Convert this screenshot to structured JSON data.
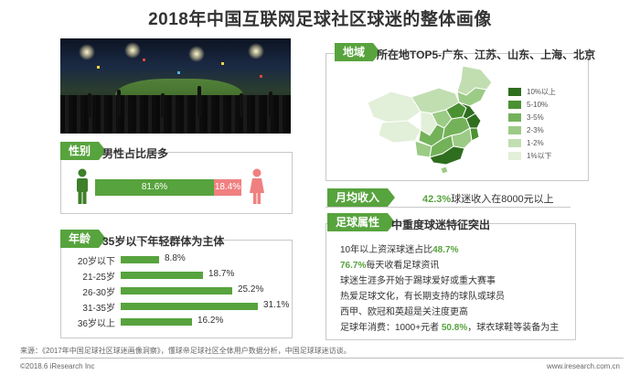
{
  "title": "2018年中国互联网足球社区球迷的整体画像",
  "region": {
    "tag": "地域",
    "headline": "所在地TOP5-广东、江苏、山东、上海、北京",
    "legend": [
      {
        "label": "10%以上",
        "color": "#2f6e1e"
      },
      {
        "label": "5-10%",
        "color": "#4b9132"
      },
      {
        "label": "3-5%",
        "color": "#74b25a"
      },
      {
        "label": "2-3%",
        "color": "#9ccb86"
      },
      {
        "label": "1-2%",
        "color": "#c1deb1"
      },
      {
        "label": "1%以下",
        "color": "#e2efd9"
      }
    ]
  },
  "gender": {
    "tag": "性别",
    "headline": "男性占比居多",
    "male_pct": "81.6%",
    "female_pct": "18.4%"
  },
  "income": {
    "tag": "月均收入",
    "value": "42.3%",
    "text": "球迷收入在8000元以上"
  },
  "traits": {
    "tag": "足球属性",
    "headline": "中重度球迷特征突出",
    "lines": [
      {
        "pre": "10年以上资深球迷占比",
        "hl": "48.7%",
        "post": ""
      },
      {
        "pre": "",
        "hl": "76.7%",
        "post": "每天收看足球资讯"
      },
      {
        "pre": "球迷生涯多开始于踢球爱好或重大赛事",
        "hl": "",
        "post": ""
      },
      {
        "pre": "热爱足球文化，有长期支持的球队或球员",
        "hl": "",
        "post": ""
      },
      {
        "pre": "西甲、欧冠和英超是关注度更高",
        "hl": "",
        "post": ""
      },
      {
        "pre": "足球年消费：1000+元者 ",
        "hl": "50.8%",
        "post": "，球衣球鞋等装备为主"
      }
    ]
  },
  "age": {
    "tag": "年龄",
    "headline": "35岁以下年轻群体为主体"
  },
  "chart_data": {
    "type": "bar",
    "categories": [
      "20岁以下",
      "21-25岁",
      "26-30岁",
      "31-35岁",
      "36岁以上"
    ],
    "values": [
      8.8,
      18.7,
      25.2,
      31.1,
      16.2
    ],
    "labels": [
      "8.8%",
      "18.7%",
      "25.2%",
      "31.1%",
      "16.2%"
    ],
    "orientation": "horizontal",
    "title": "",
    "xlabel": "",
    "ylabel": ""
  },
  "footer": {
    "source": "来源：《2017年中国足球社区球迷画像洞察》，懂球帝足球社区全体用户数据分析，中国足球球迷访谈。",
    "copyright": "©2018.6 iResearch Inc",
    "site": "www.iresearch.com.cn"
  },
  "colors": {
    "accent": "#57a33d",
    "female": "#f08080"
  }
}
